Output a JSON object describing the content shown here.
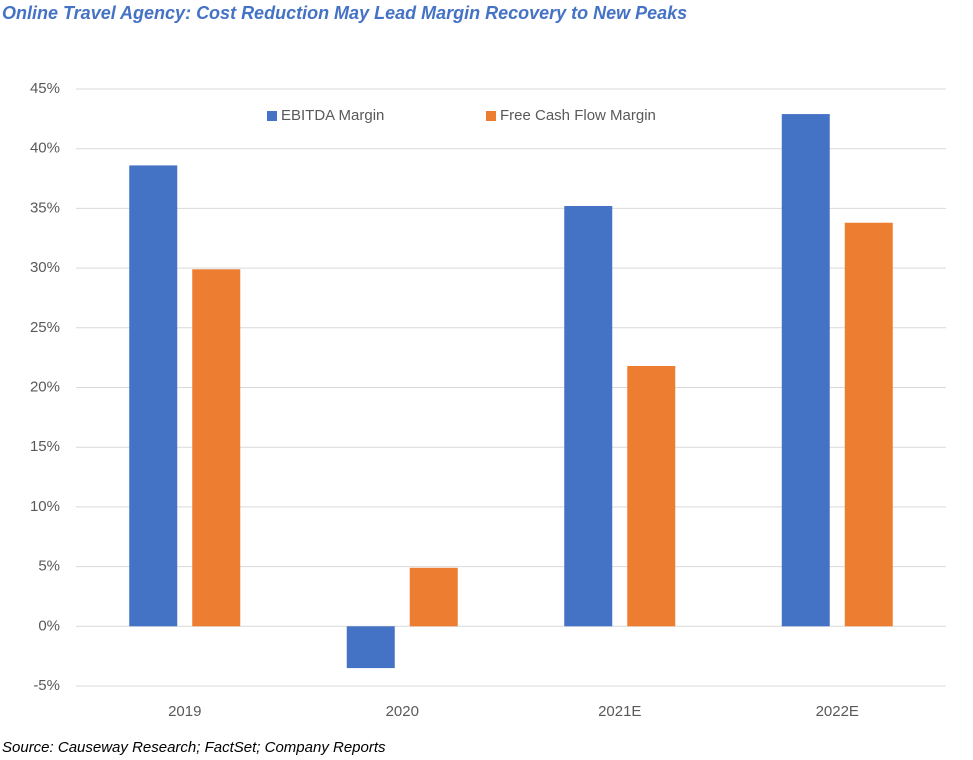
{
  "chart_data": {
    "type": "bar",
    "title": "Online Travel Agency: Cost Reduction May Lead Margin Recovery to New Peaks",
    "source": "Source: Causeway Research; FactSet; Company Reports",
    "categories": [
      "2019",
      "2020",
      "2021E",
      "2022E"
    ],
    "series": [
      {
        "name": "EBITDA Margin",
        "color": "#4472c4",
        "values": [
          38.6,
          -3.5,
          35.2,
          42.9
        ]
      },
      {
        "name": "Free Cash Flow Margin",
        "color": "#ed7d31",
        "values": [
          29.9,
          4.9,
          21.8,
          33.8
        ]
      }
    ],
    "ylim": [
      -5,
      45
    ],
    "yticks": [
      {
        "value": -5,
        "label": "-5%"
      },
      {
        "value": 0,
        "label": "0%"
      },
      {
        "value": 5,
        "label": "5%"
      },
      {
        "value": 10,
        "label": "10%"
      },
      {
        "value": 15,
        "label": "15%"
      },
      {
        "value": 20,
        "label": "20%"
      },
      {
        "value": 25,
        "label": "25%"
      },
      {
        "value": 30,
        "label": "30%"
      },
      {
        "value": 35,
        "label": "35%"
      },
      {
        "value": 40,
        "label": "40%"
      },
      {
        "value": 45,
        "label": "45%"
      }
    ],
    "grid": true
  }
}
